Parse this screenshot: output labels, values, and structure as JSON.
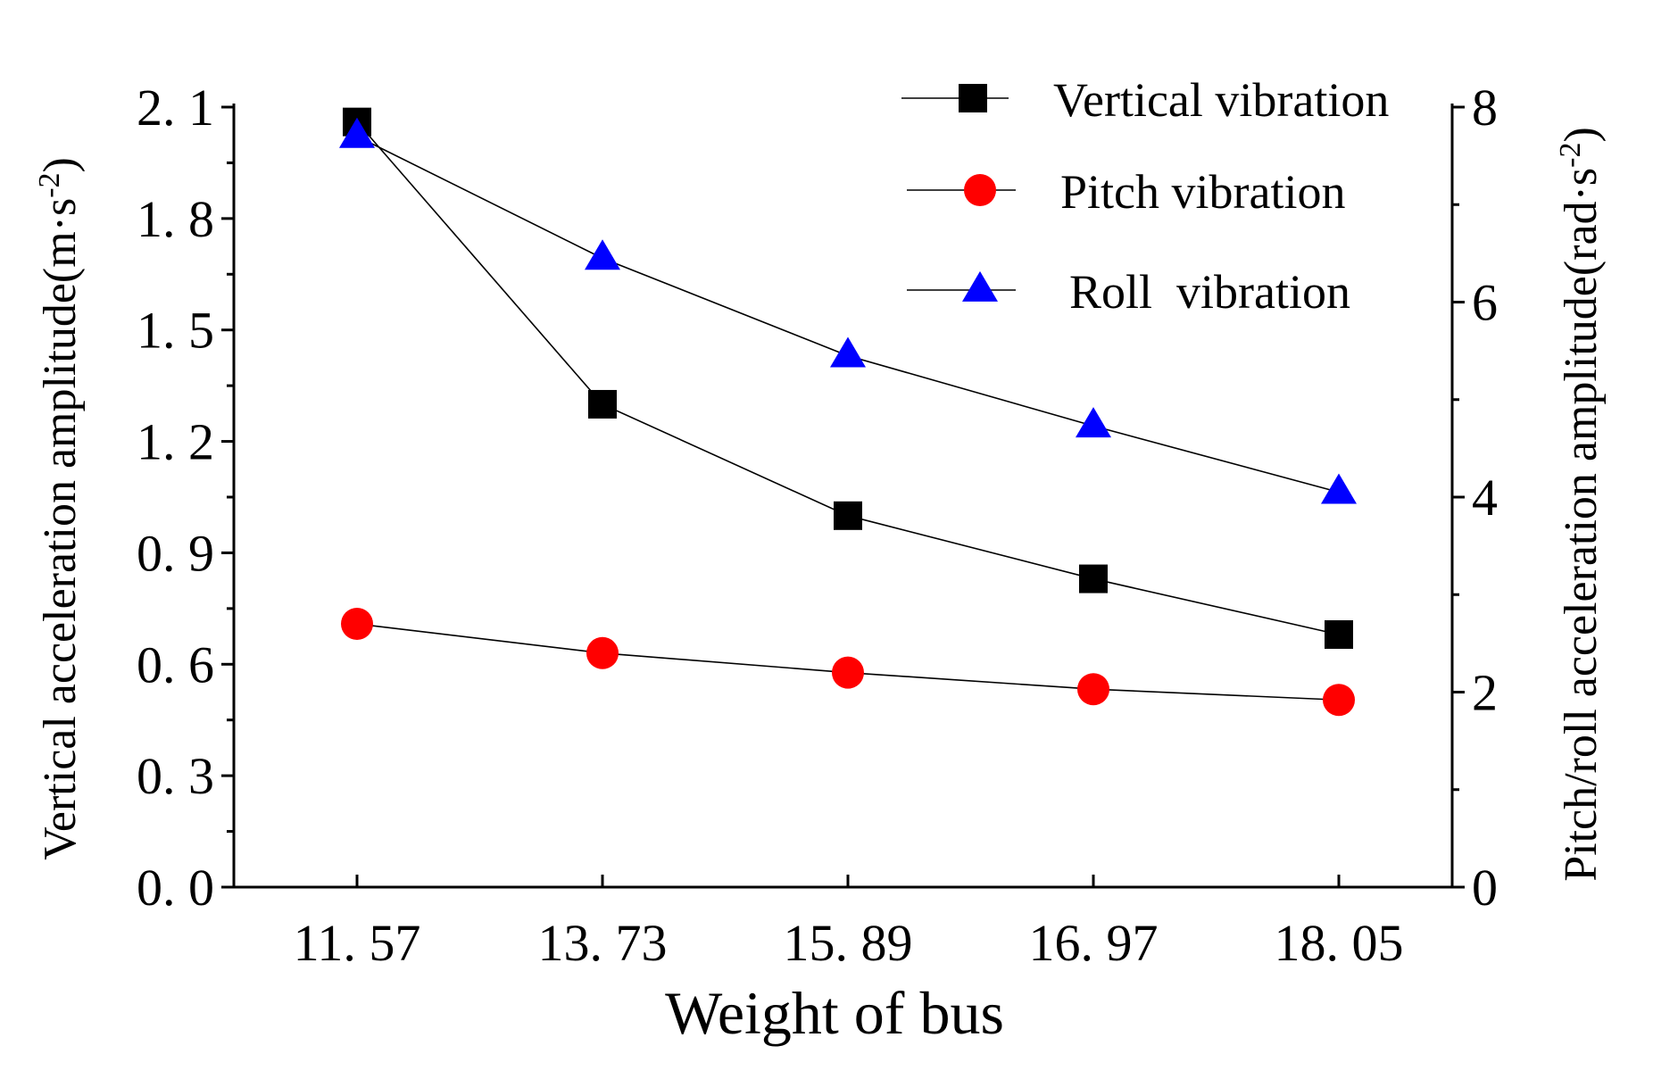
{
  "chart_data": {
    "type": "line",
    "xlabel": "Weight of bus",
    "ylabel_left_main": "Vertical acceleration amplitude(m·s",
    "ylabel_left_sup": "-2",
    "ylabel_left_close": ")",
    "ylabel_right_main": "Pitch/roll acceleration amplitude(rad·s",
    "ylabel_right_sup": "-2",
    "ylabel_right_close": ")",
    "categories": [
      "11. 57",
      "13. 73",
      "15. 89",
      "16. 97",
      "18. 05"
    ],
    "y_left": {
      "ylim": [
        0,
        2.1
      ],
      "ticks": [
        "0. 0",
        "0. 3",
        "0. 6",
        "0. 9",
        "1. 2",
        "1. 5",
        "1. 8",
        "2. 1"
      ],
      "tick_values": [
        0,
        0.3,
        0.6,
        0.9,
        1.2,
        1.5,
        1.8,
        2.1
      ]
    },
    "y_right": {
      "ylim": [
        0,
        8
      ],
      "ticks": [
        "0",
        "2",
        "4",
        "6",
        "8"
      ],
      "tick_values": [
        0,
        2,
        4,
        6,
        8
      ]
    },
    "grid": false,
    "legend_position": "top-right",
    "series": [
      {
        "name": "Vertical vibration",
        "axis": "left",
        "marker": "square",
        "color": "#000000",
        "values": [
          2.06,
          1.3,
          1.0,
          0.83,
          0.68
        ]
      },
      {
        "name": "Pitch vibration",
        "axis": "right",
        "marker": "circle",
        "color": "#ff0000",
        "values": [
          2.7,
          2.4,
          2.2,
          2.03,
          1.92
        ]
      },
      {
        "name": "Roll  vibration",
        "axis": "right",
        "marker": "triangle",
        "color": "#0000ff",
        "values": [
          7.7,
          6.45,
          5.45,
          4.73,
          4.05
        ]
      }
    ]
  }
}
